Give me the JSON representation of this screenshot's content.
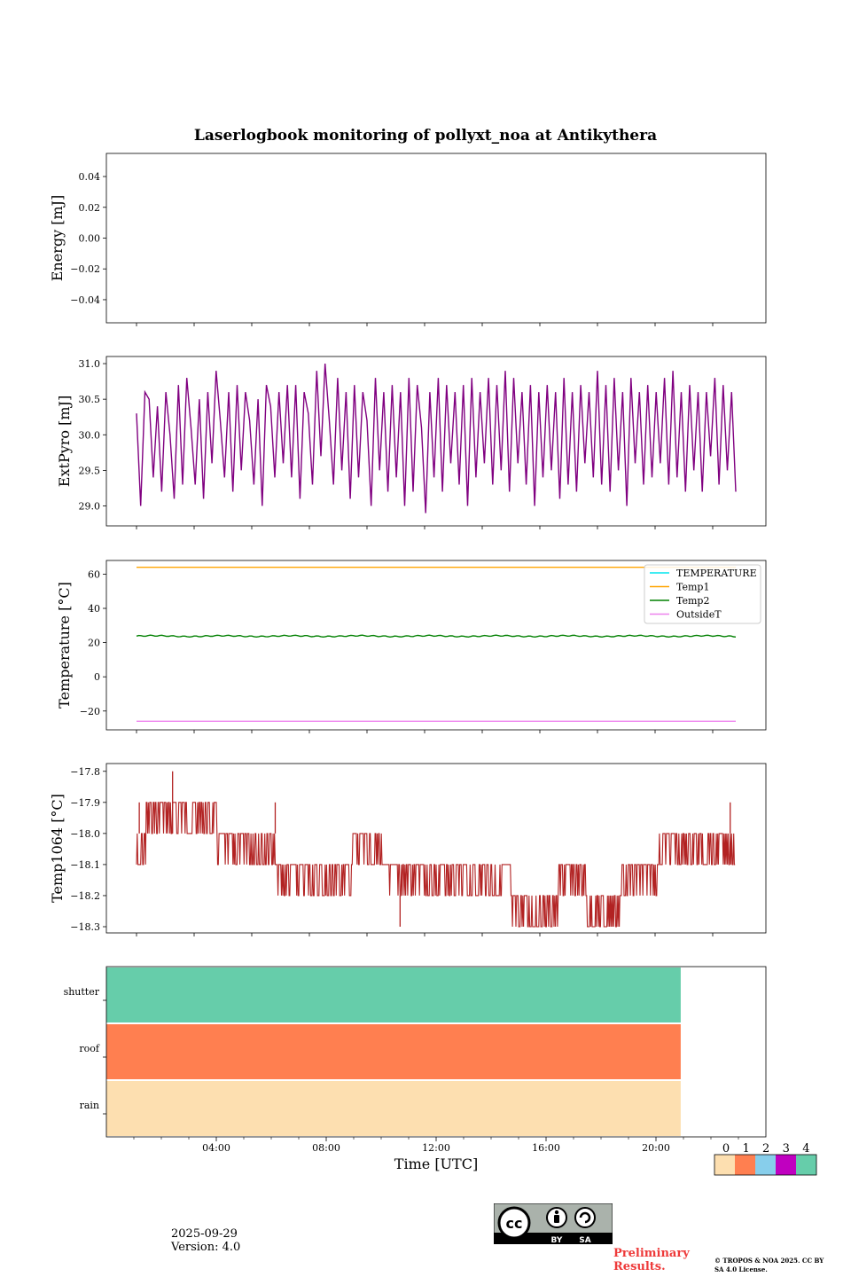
{
  "title": "Laserlogbook monitoring of pollyxt_noa at Antikythera",
  "footer": {
    "date": "2025-09-29",
    "version": "Version: 4.0",
    "preliminary": "Preliminary Results.",
    "copyright": "© TROPOS & NOA 2025. CC BY SA 4.0 License.",
    "license_badge": {
      "cc": "cc",
      "by": "BY",
      "sa": "SA"
    }
  },
  "colors": {
    "extpyro": "#800080",
    "temperature": "#00e5ee",
    "temp1": "#ffa500",
    "temp2": "#008000",
    "outsideT": "#ee82ee",
    "temp1064": "#b22222",
    "status": [
      "#fddfb0",
      "#ff7f50",
      "#87ceeb",
      "#c000c0",
      "#66cdaa"
    ]
  },
  "chart_data": [
    {
      "type": "line",
      "panel": "energy",
      "ylabel": "Energy [mJ]",
      "ylim": [
        -0.055,
        0.055
      ],
      "yticks": [
        0.04,
        0.02,
        0.0,
        -0.02,
        -0.04
      ],
      "yticklabels": [
        "0.04",
        "0.02",
        "0.00",
        "−0.02",
        "−0.04"
      ],
      "series": []
    },
    {
      "type": "line",
      "panel": "extpyro",
      "ylabel": "ExtPyro [mJ]",
      "ylim": [
        28.72,
        31.1
      ],
      "yticks": [
        31.0,
        30.5,
        30.0,
        29.5,
        29.0
      ],
      "yticklabels": [
        "31.0",
        "30.5",
        "30.0",
        "29.5",
        "29.0"
      ],
      "series": [
        {
          "name": "ExtPyro",
          "x_range": [
            1.0,
            22.6
          ],
          "values": [
            30.3,
            29.0,
            30.6,
            30.5,
            29.4,
            30.4,
            29.2,
            30.6,
            30.0,
            29.1,
            30.7,
            29.3,
            30.8,
            30.1,
            29.3,
            30.5,
            29.1,
            30.6,
            29.6,
            30.9,
            30.2,
            29.4,
            30.6,
            29.2,
            30.7,
            29.5,
            30.6,
            30.2,
            29.3,
            30.5,
            29.0,
            30.7,
            30.4,
            29.4,
            30.6,
            29.6,
            30.7,
            29.4,
            30.7,
            29.1,
            30.6,
            30.3,
            29.3,
            30.9,
            29.7,
            31.0,
            30.2,
            29.3,
            30.8,
            29.5,
            30.6,
            29.1,
            30.7,
            29.4,
            30.6,
            30.2,
            29.0,
            30.8,
            29.5,
            30.6,
            29.2,
            30.7,
            29.4,
            30.6,
            29.0,
            30.8,
            29.2,
            30.7,
            30.1,
            28.9,
            30.6,
            29.4,
            30.8,
            29.2,
            30.7,
            29.6,
            30.6,
            29.3,
            30.7,
            29.0,
            30.8,
            29.4,
            30.6,
            29.6,
            30.8,
            29.3,
            30.7,
            29.5,
            30.9,
            29.2,
            30.8,
            29.6,
            30.6,
            29.3,
            30.7,
            29.0,
            30.6,
            29.4,
            30.7,
            29.5,
            30.6,
            29.1,
            30.8,
            29.3,
            30.6,
            29.2,
            30.7,
            29.6,
            30.6,
            29.4,
            30.9,
            29.3,
            30.7,
            29.2,
            30.8,
            29.5,
            30.6,
            29.0,
            30.8,
            29.6,
            30.6,
            29.3,
            30.7,
            29.4,
            30.6,
            29.6,
            30.8,
            29.3,
            30.9,
            29.4,
            30.6,
            29.2,
            30.7,
            29.5,
            30.6,
            29.2,
            30.6,
            29.7,
            30.8,
            29.3,
            30.7,
            29.5,
            30.6,
            29.2
          ]
        }
      ]
    },
    {
      "type": "line",
      "panel": "temperature",
      "ylabel": "Temperature [°C]",
      "ylim": [
        -31,
        68
      ],
      "yticks": [
        60,
        40,
        20,
        0,
        -20
      ],
      "yticklabels": [
        "60",
        "40",
        "20",
        "0",
        "−20"
      ],
      "legend": [
        "TEMPERATURE",
        "Temp1",
        "Temp2",
        "OutsideT"
      ],
      "legend_position": "top-right",
      "series": [
        {
          "name": "Temp1",
          "x_range": [
            1.0,
            22.6
          ],
          "constant": 64
        },
        {
          "name": "Temp2",
          "x_range": [
            1.0,
            22.6
          ],
          "mean": 23.8,
          "amplitude": 0.5
        },
        {
          "name": "OutsideT",
          "x_range": [
            1.0,
            22.6
          ],
          "constant": -26
        }
      ]
    },
    {
      "type": "line",
      "panel": "temp1064",
      "ylabel": "Temp1064 [°C]",
      "ylim": [
        -18.32,
        -17.775
      ],
      "yticks": [
        -17.8,
        -17.9,
        -18.0,
        -18.1,
        -18.2,
        -18.3
      ],
      "yticklabels": [
        "−17.8",
        "−17.9",
        "−18.0",
        "−18.1",
        "−18.2",
        "−18.3"
      ],
      "series": [
        {
          "name": "Temp1064",
          "x_range": [
            1.0,
            22.6
          ],
          "segments": [
            {
              "from": 1.0,
              "to": 1.35,
              "levels": [
                -18.1,
                -18.0
              ]
            },
            {
              "from": 1.35,
              "to": 3.9,
              "levels": [
                -17.9,
                -18.0
              ]
            },
            {
              "from": 3.9,
              "to": 6.0,
              "levels": [
                -18.0,
                -18.1
              ]
            },
            {
              "from": 6.0,
              "to": 8.8,
              "levels": [
                -18.1,
                -18.2
              ]
            },
            {
              "from": 8.8,
              "to": 9.9,
              "levels": [
                -18.0,
                -18.1
              ]
            },
            {
              "from": 9.9,
              "to": 12.0,
              "levels": [
                -18.1,
                -18.2
              ]
            },
            {
              "from": 12.0,
              "to": 14.5,
              "levels": [
                -18.1,
                -18.2
              ]
            },
            {
              "from": 14.5,
              "to": 16.2,
              "levels": [
                -18.2,
                -18.3
              ]
            },
            {
              "from": 16.2,
              "to": 17.2,
              "levels": [
                -18.1,
                -18.2
              ]
            },
            {
              "from": 17.2,
              "to": 18.5,
              "levels": [
                -18.2,
                -18.3
              ]
            },
            {
              "from": 18.5,
              "to": 19.8,
              "levels": [
                -18.1,
                -18.2
              ]
            },
            {
              "from": 19.8,
              "to": 22.6,
              "levels": [
                -18.0,
                -18.1
              ]
            }
          ],
          "spikes": [
            {
              "x": 2.3,
              "y": -17.8
            },
            {
              "x": 10.5,
              "y": -18.3
            },
            {
              "x": 22.4,
              "y": -17.9
            },
            {
              "x": 1.1,
              "y": -17.9
            },
            {
              "x": 6.0,
              "y": -17.9
            }
          ]
        }
      ]
    },
    {
      "type": "heatmap",
      "panel": "status",
      "rows": [
        "shutter",
        "roof",
        "rain"
      ],
      "row_values": [
        4,
        1,
        0
      ],
      "x_extent_hours": [
        0,
        20.9
      ],
      "xlim_hours": [
        0,
        24
      ],
      "xticks_hours": [
        4,
        8,
        12,
        16,
        20
      ],
      "xticklabels": [
        "04:00",
        "08:00",
        "12:00",
        "16:00",
        "20:00"
      ],
      "xlabel": "Time [UTC]",
      "colorbar": {
        "ticks": [
          "0",
          "1",
          "2",
          "3",
          "4"
        ]
      }
    }
  ]
}
